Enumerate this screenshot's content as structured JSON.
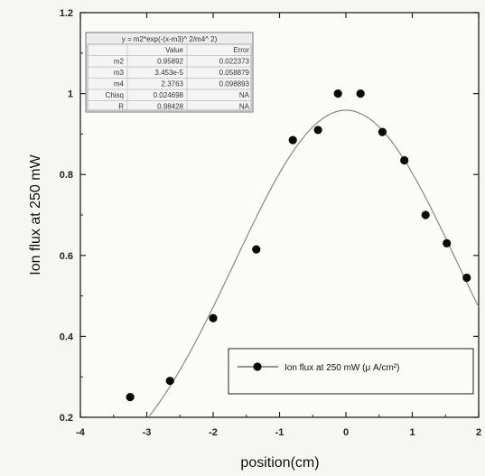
{
  "chart_data": {
    "type": "scatter",
    "xlabel": "position(cm)",
    "ylabel": "Ion flux at 250 mW",
    "xlim": [
      -4,
      2
    ],
    "ylim": [
      0.2,
      1.2
    ],
    "x_ticks": [
      "-4",
      "-3",
      "-2",
      "-1",
      "0",
      "1",
      "2"
    ],
    "y_ticks": [
      "0.2",
      "0.4",
      "0.6",
      "0.8",
      "1",
      "1.2"
    ],
    "grid": false,
    "legend_position": "bottom-right",
    "series": [
      {
        "name": "Ion flux at 250 mW (μ A/cm²)",
        "x": [
          -3.25,
          -2.65,
          -2.0,
          -1.35,
          -0.8,
          -0.42,
          -0.12,
          0.22,
          0.55,
          0.88,
          1.2,
          1.52,
          1.82
        ],
        "y": [
          0.25,
          0.29,
          0.445,
          0.615,
          0.885,
          0.91,
          1.0,
          1.0,
          0.905,
          0.835,
          0.7,
          0.63,
          0.545
        ]
      }
    ],
    "fit": {
      "equation": "y = m2*exp(-(x-m3)^2/m4^2)",
      "params": {
        "m2": 0.95892,
        "m3": 3.453e-05,
        "m4": 2.3763
      }
    },
    "fit_table": {
      "title": "y = m2*exp(-(x-m3)^ 2/m4^ 2)",
      "headers": [
        "",
        "Value",
        "Error"
      ],
      "rows": [
        [
          "m2",
          "0.95892",
          "0.022373"
        ],
        [
          "m3",
          "3.453e-5",
          "0.058879"
        ],
        [
          "m4",
          "2.3763",
          "0.098893"
        ],
        [
          "Chisq",
          "0.024698",
          "NA"
        ],
        [
          "R",
          "0.98428",
          "NA"
        ]
      ]
    }
  }
}
